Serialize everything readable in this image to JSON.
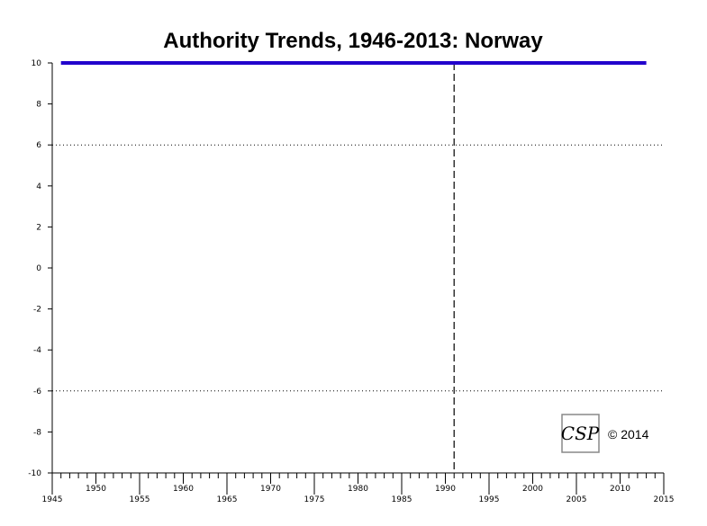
{
  "chart_data": {
    "type": "line",
    "title": "Authority Trends, 1946-2013: Norway",
    "xlabel": "",
    "ylabel": "",
    "xlim": [
      1945,
      2015
    ],
    "ylim": [
      -10,
      10
    ],
    "x_major_ticks": [
      1945,
      1950,
      1955,
      1960,
      1965,
      1970,
      1975,
      1980,
      1985,
      1990,
      1995,
      2000,
      2005,
      2010,
      2015
    ],
    "y_ticks": [
      10,
      8,
      6,
      4,
      2,
      0,
      -2,
      -4,
      -6,
      -8,
      -10
    ],
    "y_reference_lines": [
      6,
      -6
    ],
    "x_reference_lines": [
      1991
    ],
    "series": [
      {
        "x": [
          1946,
          2013
        ],
        "y": [
          10,
          10
        ],
        "color": "#2200cc"
      }
    ],
    "grid": false,
    "legend": "none"
  },
  "logo": {
    "text": "CSP"
  },
  "copyright": "© 2014",
  "colors": {
    "series": "#2200cc",
    "axis": "#000000"
  }
}
